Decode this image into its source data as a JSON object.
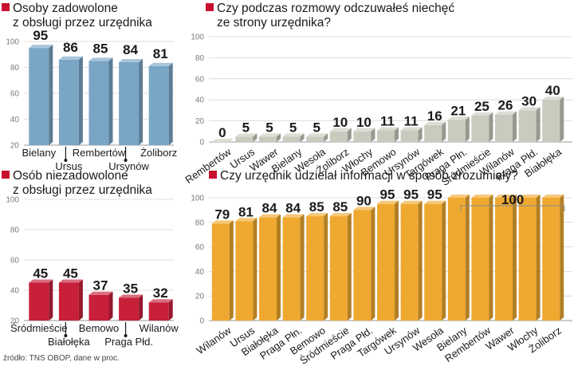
{
  "chart_data": [
    {
      "type": "bar",
      "title_line1": "Osoby zadowolone",
      "title_line2": "z obsługi przez urzędnika",
      "categories": [
        "Bielany",
        "Ursus",
        "Rembertów",
        "Ursynów",
        "Żoliborz"
      ],
      "values": [
        95,
        86,
        85,
        84,
        81
      ],
      "ylim": [
        20,
        100
      ],
      "yticks": [
        20,
        40,
        60,
        80,
        100
      ],
      "xlabel": "",
      "ylabel": ""
    },
    {
      "type": "bar",
      "title_line1": "Czy podczas rozmowy odczuwałeś niechęć",
      "title_line2": "ze strony urzędnika?",
      "categories": [
        "Rembertów",
        "Ursus",
        "Wawer",
        "Bielany",
        "Wesoła",
        "Żoliborz",
        "Włochy",
        "Bemowo",
        "Ursynów",
        "Targówek",
        "Praga Płn.",
        "Śródmieście",
        "Wilanów",
        "Praga Płd.",
        "Białołęka"
      ],
      "values": [
        0,
        5,
        5,
        5,
        5,
        10,
        10,
        11,
        11,
        16,
        21,
        25,
        26,
        30,
        40
      ],
      "ylim": [
        0,
        100
      ],
      "yticks": [
        0,
        20,
        40,
        60,
        80,
        100
      ],
      "xlabel": "",
      "ylabel": ""
    },
    {
      "type": "bar",
      "title_line1": "Osób niezadowolone",
      "title_line2": "z obsługi przez urzędnika",
      "categories": [
        "Śródmieście",
        "Białołęka",
        "Bemowo",
        "Praga Płd.",
        "Wilanów"
      ],
      "values": [
        45,
        45,
        37,
        35,
        32
      ],
      "ylim": [
        20,
        100
      ],
      "yticks": [
        20,
        40,
        60,
        80,
        100
      ],
      "xlabel": "",
      "ylabel": ""
    },
    {
      "type": "bar",
      "title_line1": "Czy urzędnik udzielał informacji w sposób zrozumiały?",
      "title_line2": "",
      "categories": [
        "Wilanów",
        "Ursus",
        "Białołęka",
        "Praga Płn.",
        "Bemowo",
        "Śródmieście",
        "Praga Płd.",
        "Targówek",
        "Ursynów",
        "Wesoła",
        "Bielany",
        "Rembertów",
        "Wawer",
        "Włochy",
        "Żoliborz"
      ],
      "values": [
        79,
        81,
        84,
        84,
        85,
        85,
        90,
        95,
        95,
        95,
        100,
        100,
        100,
        100,
        100
      ],
      "group_label": "100",
      "ylim": [
        0,
        100
      ],
      "yticks": [
        0,
        20,
        40,
        60,
        80,
        100
      ],
      "xlabel": "",
      "ylabel": ""
    }
  ],
  "colors": {
    "blue": "#7aa6c6",
    "gray": "#c9cbbf",
    "red": "#c8203a",
    "orange": "#efa930",
    "marker": "#c8102e"
  },
  "source": "źródło: TNS OBOP, dane w proc."
}
